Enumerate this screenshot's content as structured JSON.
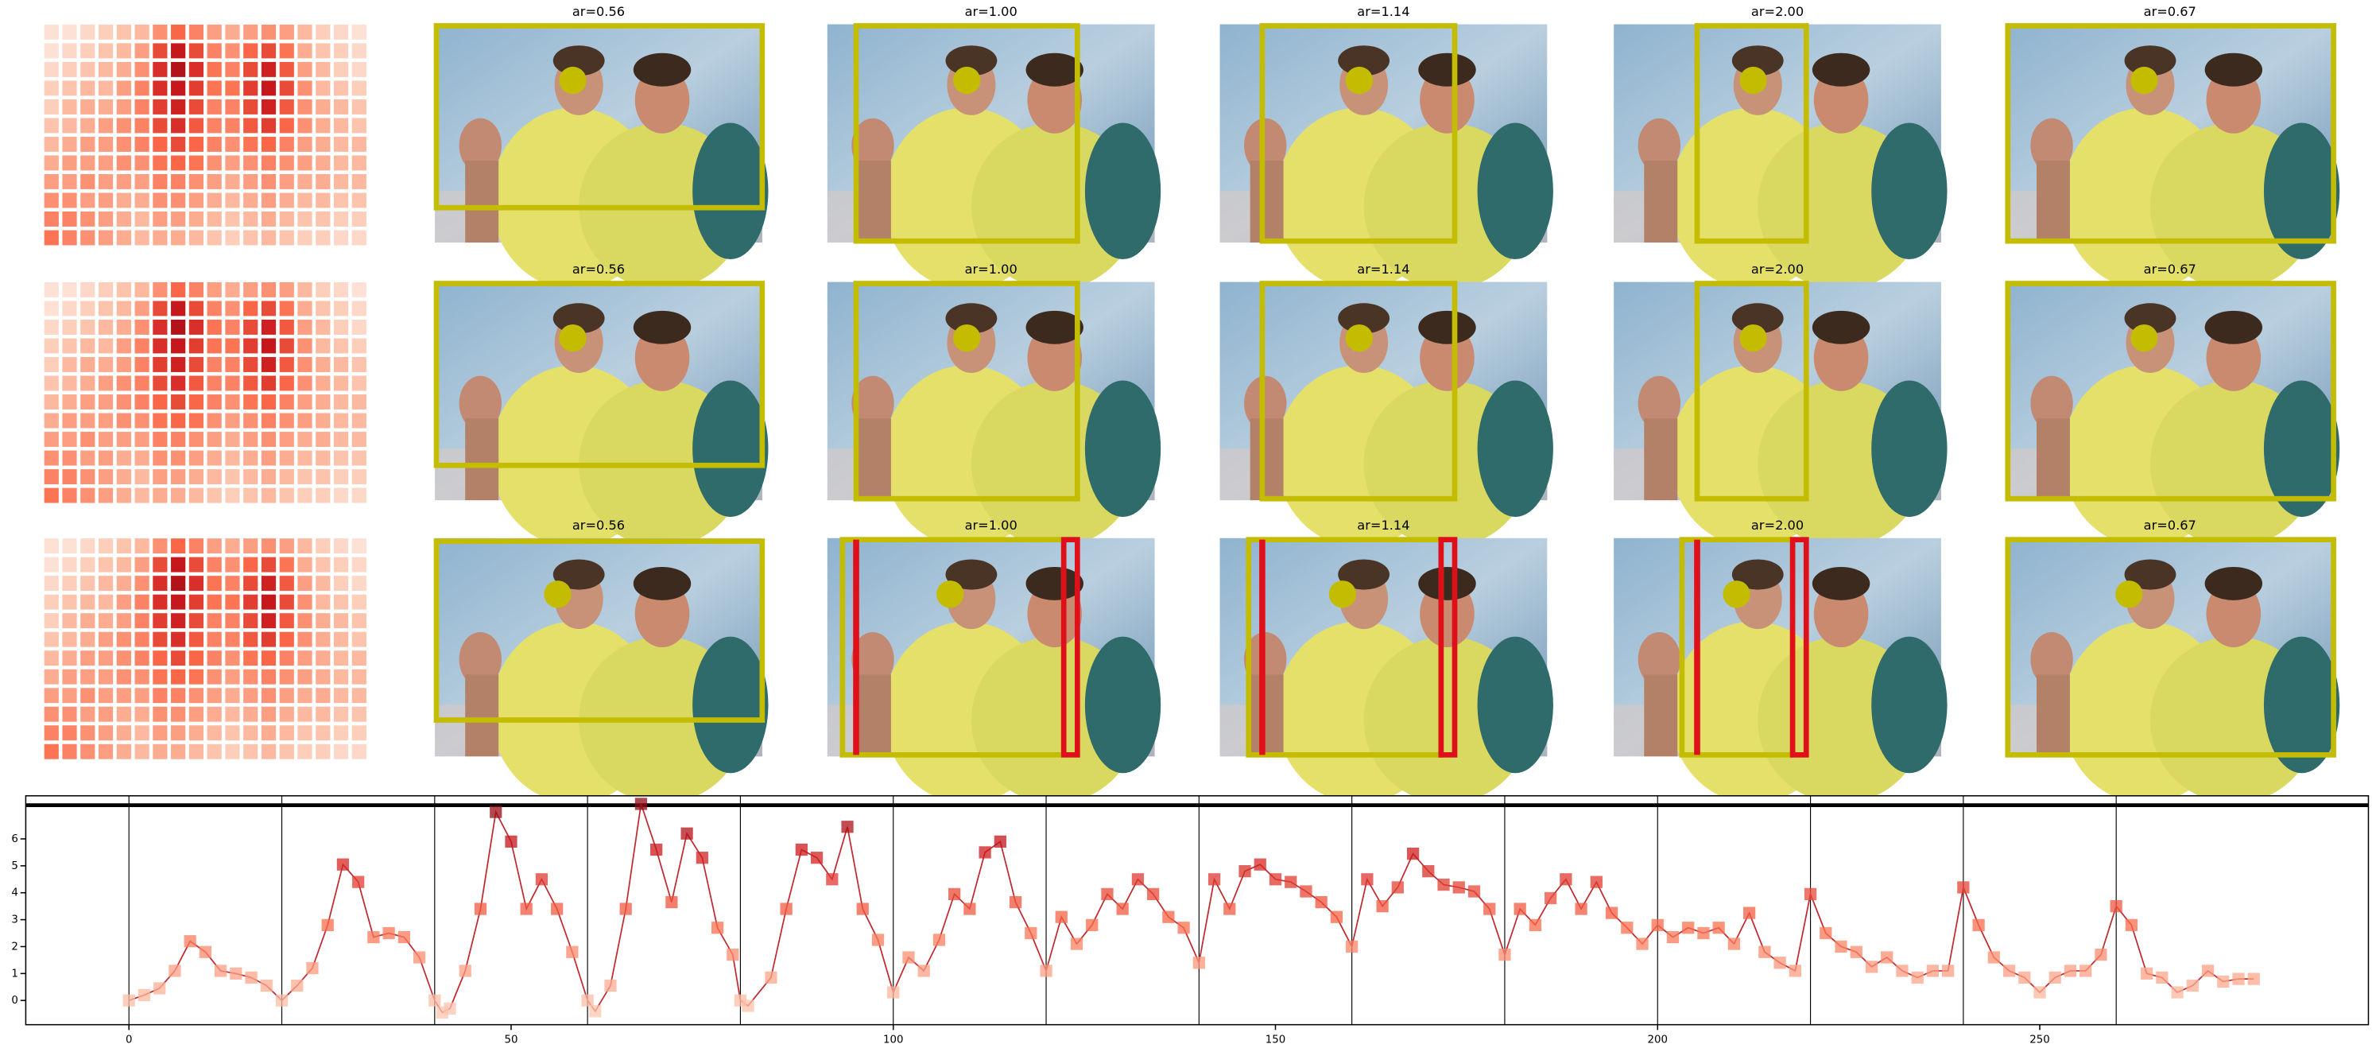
{
  "image_titles": [
    [
      "ar=0.56",
      "ar=1.00",
      "ar=1.14",
      "ar=2.00",
      "ar=0.67"
    ],
    [
      "ar=0.56",
      "ar=1.00",
      "ar=1.14",
      "ar=2.00",
      "ar=0.67"
    ],
    [
      "ar=0.56",
      "ar=1.00",
      "ar=1.14",
      "ar=2.00",
      "ar=0.67"
    ]
  ],
  "heatmap": [
    [
      0.1,
      0.1,
      0.15,
      0.2,
      0.25,
      0.3,
      0.45,
      0.6,
      0.5,
      0.4,
      0.35,
      0.4,
      0.45,
      0.4,
      0.3,
      0.2,
      0.15,
      0.1
    ],
    [
      0.1,
      0.15,
      0.2,
      0.25,
      0.3,
      0.4,
      0.7,
      0.9,
      0.7,
      0.5,
      0.45,
      0.6,
      0.7,
      0.55,
      0.35,
      0.25,
      0.2,
      0.15
    ],
    [
      0.15,
      0.2,
      0.25,
      0.3,
      0.35,
      0.45,
      0.8,
      0.95,
      0.8,
      0.55,
      0.5,
      0.7,
      0.85,
      0.65,
      0.4,
      0.3,
      0.2,
      0.15
    ],
    [
      0.2,
      0.25,
      0.3,
      0.3,
      0.4,
      0.5,
      0.8,
      0.9,
      0.75,
      0.55,
      0.55,
      0.75,
      0.9,
      0.7,
      0.45,
      0.3,
      0.25,
      0.2
    ],
    [
      0.2,
      0.3,
      0.35,
      0.35,
      0.4,
      0.5,
      0.75,
      0.85,
      0.7,
      0.5,
      0.5,
      0.7,
      0.85,
      0.65,
      0.45,
      0.35,
      0.3,
      0.25
    ],
    [
      0.25,
      0.3,
      0.35,
      0.4,
      0.45,
      0.5,
      0.7,
      0.8,
      0.65,
      0.5,
      0.5,
      0.65,
      0.75,
      0.6,
      0.45,
      0.35,
      0.3,
      0.25
    ],
    [
      0.3,
      0.35,
      0.4,
      0.4,
      0.45,
      0.5,
      0.6,
      0.7,
      0.6,
      0.5,
      0.45,
      0.55,
      0.6,
      0.5,
      0.4,
      0.35,
      0.3,
      0.3
    ],
    [
      0.35,
      0.4,
      0.4,
      0.4,
      0.45,
      0.45,
      0.55,
      0.6,
      0.55,
      0.45,
      0.4,
      0.45,
      0.5,
      0.45,
      0.4,
      0.35,
      0.3,
      0.3
    ],
    [
      0.4,
      0.4,
      0.45,
      0.4,
      0.4,
      0.4,
      0.5,
      0.5,
      0.45,
      0.4,
      0.35,
      0.4,
      0.45,
      0.4,
      0.35,
      0.35,
      0.3,
      0.3
    ],
    [
      0.45,
      0.45,
      0.4,
      0.4,
      0.35,
      0.35,
      0.45,
      0.45,
      0.4,
      0.35,
      0.3,
      0.35,
      0.4,
      0.35,
      0.3,
      0.3,
      0.25,
      0.25
    ],
    [
      0.5,
      0.5,
      0.45,
      0.4,
      0.35,
      0.3,
      0.4,
      0.4,
      0.35,
      0.3,
      0.25,
      0.3,
      0.35,
      0.3,
      0.25,
      0.25,
      0.2,
      0.2
    ],
    [
      0.55,
      0.5,
      0.45,
      0.4,
      0.35,
      0.3,
      0.35,
      0.35,
      0.3,
      0.25,
      0.2,
      0.25,
      0.3,
      0.25,
      0.2,
      0.2,
      0.15,
      0.15
    ]
  ],
  "chart_data": {
    "type": "line",
    "x": [
      0,
      2,
      4,
      6,
      8,
      10,
      12,
      14,
      16,
      18,
      20,
      22,
      24,
      26,
      28,
      30,
      32,
      34,
      36,
      38,
      40,
      41,
      42,
      44,
      46,
      48,
      50,
      52,
      54,
      56,
      58,
      60,
      61,
      63,
      65,
      67,
      69,
      71,
      73,
      75,
      77,
      79,
      80,
      81,
      84,
      86,
      88,
      90,
      92,
      94,
      96,
      98,
      100,
      102,
      104,
      106,
      108,
      110,
      112,
      114,
      116,
      118,
      120,
      122,
      124,
      126,
      128,
      130,
      132,
      134,
      136,
      138,
      140,
      142,
      144,
      146,
      148,
      150,
      152,
      154,
      156,
      158,
      160,
      162,
      164,
      166,
      168,
      170,
      172,
      174,
      176,
      178,
      180,
      182,
      184,
      186,
      188,
      190,
      192,
      194,
      196,
      198,
      200,
      202,
      204,
      206,
      208,
      210,
      212,
      214,
      216,
      218,
      220,
      222,
      224,
      226,
      228,
      230,
      232,
      234,
      236,
      238,
      240,
      242,
      244,
      246,
      248,
      250,
      252,
      254,
      256,
      258,
      260,
      262,
      264,
      266,
      268,
      270,
      272,
      274,
      276,
      278
    ],
    "values": [
      0,
      0.2,
      0.45,
      1.1,
      2.2,
      1.8,
      1.1,
      1.0,
      0.85,
      0.55,
      0,
      0.55,
      1.2,
      2.8,
      5.05,
      4.4,
      2.35,
      2.5,
      2.35,
      1.6,
      0,
      -0.45,
      -0.3,
      1.1,
      3.4,
      7.0,
      5.9,
      3.4,
      4.5,
      3.4,
      1.8,
      0,
      -0.4,
      0.55,
      3.4,
      7.3,
      5.6,
      3.65,
      6.2,
      5.3,
      2.7,
      1.7,
      0,
      -0.2,
      0.85,
      3.4,
      5.6,
      5.3,
      4.5,
      6.45,
      3.4,
      2.25,
      0.3,
      1.6,
      1.1,
      2.25,
      3.95,
      3.4,
      5.5,
      5.9,
      3.65,
      2.5,
      1.1,
      3.1,
      2.1,
      2.8,
      3.95,
      3.4,
      4.5,
      3.95,
      3.1,
      2.7,
      1.4,
      4.5,
      3.4,
      4.8,
      5.05,
      4.5,
      4.4,
      4.05,
      3.65,
      3.1,
      2.0,
      4.5,
      3.5,
      4.2,
      5.45,
      4.8,
      4.3,
      4.2,
      4.05,
      3.4,
      1.7,
      3.4,
      2.8,
      3.8,
      4.5,
      3.4,
      4.4,
      3.25,
      2.7,
      2.1,
      2.8,
      2.35,
      2.7,
      2.5,
      2.7,
      2.1,
      3.25,
      1.8,
      1.4,
      1.1,
      3.95,
      2.5,
      2.0,
      1.8,
      1.25,
      1.6,
      1.1,
      0.85,
      1.1,
      1.1,
      4.2,
      2.8,
      1.6,
      1.1,
      0.85,
      0.3,
      0.85,
      1.1,
      1.1,
      1.7,
      3.5,
      2.8,
      1.0,
      0.85,
      0.3,
      0.55,
      1.1,
      0.7,
      0.8,
      0.8
    ],
    "color": "#c0282d",
    "xlim": [
      -13.5,
      293
    ],
    "ylim": [
      -0.9,
      7.6
    ],
    "xticks": [
      0,
      50,
      100,
      150,
      200,
      250
    ],
    "yticks": [
      0,
      1,
      2,
      3,
      4,
      5,
      6
    ],
    "vlines": [
      0,
      20,
      40,
      60,
      80,
      100,
      120,
      140,
      160,
      180,
      200,
      220,
      240,
      260
    ],
    "hline": 7.25
  }
}
